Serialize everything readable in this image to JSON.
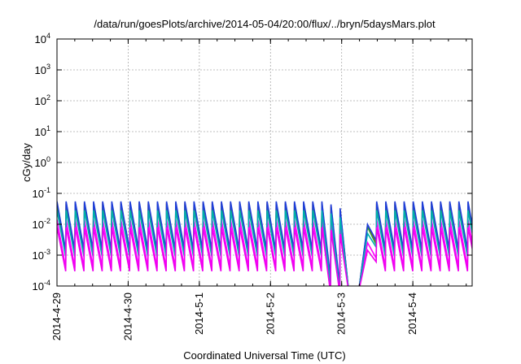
{
  "chart_data": {
    "type": "line",
    "title": "/data/run/goesPlots/archive/2014-05-04/20:00/flux/../bryn/5daysMars.plot",
    "xlabel": "Coordinated Universal Time (UTC)",
    "ylabel": "cGy/day",
    "y_scale": "log",
    "ylim": [
      0.0001,
      10000
    ],
    "xlim": [
      "2014-04-29T00:00",
      "2014-05-04T20:00"
    ],
    "grid": true,
    "legend": "none",
    "x_ticks": [
      "2014-4-29",
      "2014-4-30",
      "2014-5-1",
      "2014-5-2",
      "2014-5-3",
      "2014-5-4"
    ],
    "y_ticks": [
      {
        "value": 0.0001,
        "base": "10",
        "exp": "-4"
      },
      {
        "value": 0.001,
        "base": "10",
        "exp": "-3"
      },
      {
        "value": 0.01,
        "base": "10",
        "exp": "-2"
      },
      {
        "value": 0.1,
        "base": "10",
        "exp": "-1"
      },
      {
        "value": 1,
        "base": "10",
        "exp": "0"
      },
      {
        "value": 10,
        "base": "10",
        "exp": "1"
      },
      {
        "value": 100,
        "base": "10",
        "exp": "2"
      },
      {
        "value": 1000,
        "base": "10",
        "exp": "3"
      },
      {
        "value": 10000,
        "base": "10",
        "exp": "4"
      }
    ],
    "pattern": {
      "description": "sawtooth pulses roughly every 3 hours",
      "period_hours": 3.08,
      "gap_start": "2014-05-03T01:00",
      "gap_end": "2014-05-03T07:00"
    },
    "series": [
      {
        "color": "#e41a1c",
        "peak": 0.05,
        "trough": 0.0012
      },
      {
        "color": "#2ca02c",
        "peak": 0.045,
        "trough": 0.0011
      },
      {
        "color": "#1f3fd9",
        "peak": 0.055,
        "trough": 0.0015
      },
      {
        "color": "#ff00ff",
        "peak": 0.014,
        "trough": 0.0004
      },
      {
        "color": "#00b0b0",
        "peak": 0.028,
        "trough": 0.0009
      },
      {
        "color": "#ee00ee",
        "peak": 0.008,
        "trough": 0.0003
      }
    ]
  }
}
